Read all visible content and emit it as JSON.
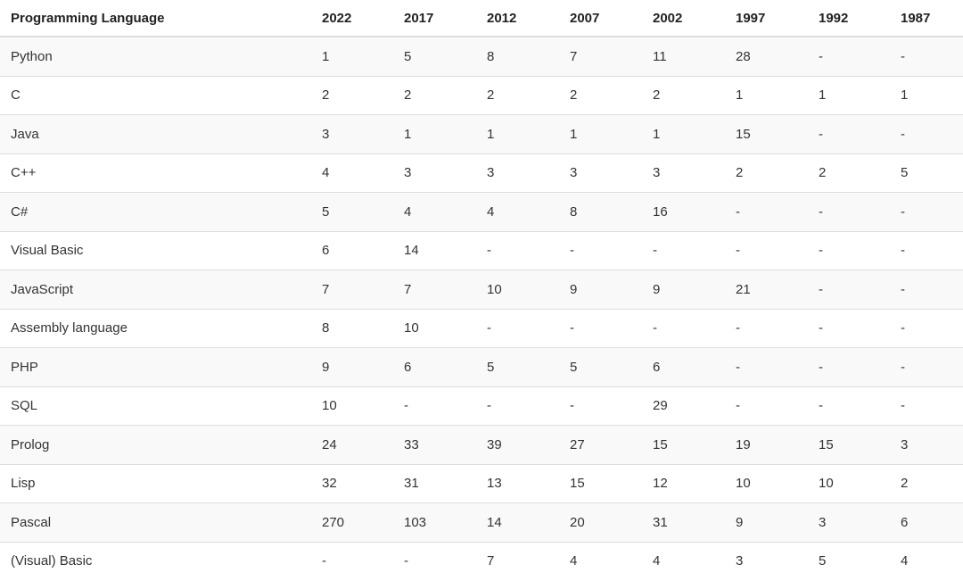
{
  "table": {
    "header": [
      "Programming Language",
      "2022",
      "2017",
      "2012",
      "2007",
      "2002",
      "1997",
      "1992",
      "1987"
    ],
    "rows": [
      [
        "Python",
        "1",
        "5",
        "8",
        "7",
        "11",
        "28",
        "-",
        "-"
      ],
      [
        "C",
        "2",
        "2",
        "2",
        "2",
        "2",
        "1",
        "1",
        "1"
      ],
      [
        "Java",
        "3",
        "1",
        "1",
        "1",
        "1",
        "15",
        "-",
        "-"
      ],
      [
        "C++",
        "4",
        "3",
        "3",
        "3",
        "3",
        "2",
        "2",
        "5"
      ],
      [
        "C#",
        "5",
        "4",
        "4",
        "8",
        "16",
        "-",
        "-",
        "-"
      ],
      [
        "Visual Basic",
        "6",
        "14",
        "-",
        "-",
        "-",
        "-",
        "-",
        "-"
      ],
      [
        "JavaScript",
        "7",
        "7",
        "10",
        "9",
        "9",
        "21",
        "-",
        "-"
      ],
      [
        "Assembly language",
        "8",
        "10",
        "-",
        "-",
        "-",
        "-",
        "-",
        "-"
      ],
      [
        "PHP",
        "9",
        "6",
        "5",
        "5",
        "6",
        "-",
        "-",
        "-"
      ],
      [
        "SQL",
        "10",
        "-",
        "-",
        "-",
        "29",
        "-",
        "-",
        "-"
      ],
      [
        "Prolog",
        "24",
        "33",
        "39",
        "27",
        "15",
        "19",
        "15",
        "3"
      ],
      [
        "Lisp",
        "32",
        "31",
        "13",
        "15",
        "12",
        "10",
        "10",
        "2"
      ],
      [
        "Pascal",
        "270",
        "103",
        "14",
        "20",
        "31",
        "9",
        "3",
        "6"
      ],
      [
        "(Visual) Basic",
        "-",
        "-",
        "7",
        "4",
        "4",
        "3",
        "5",
        "4"
      ]
    ]
  }
}
